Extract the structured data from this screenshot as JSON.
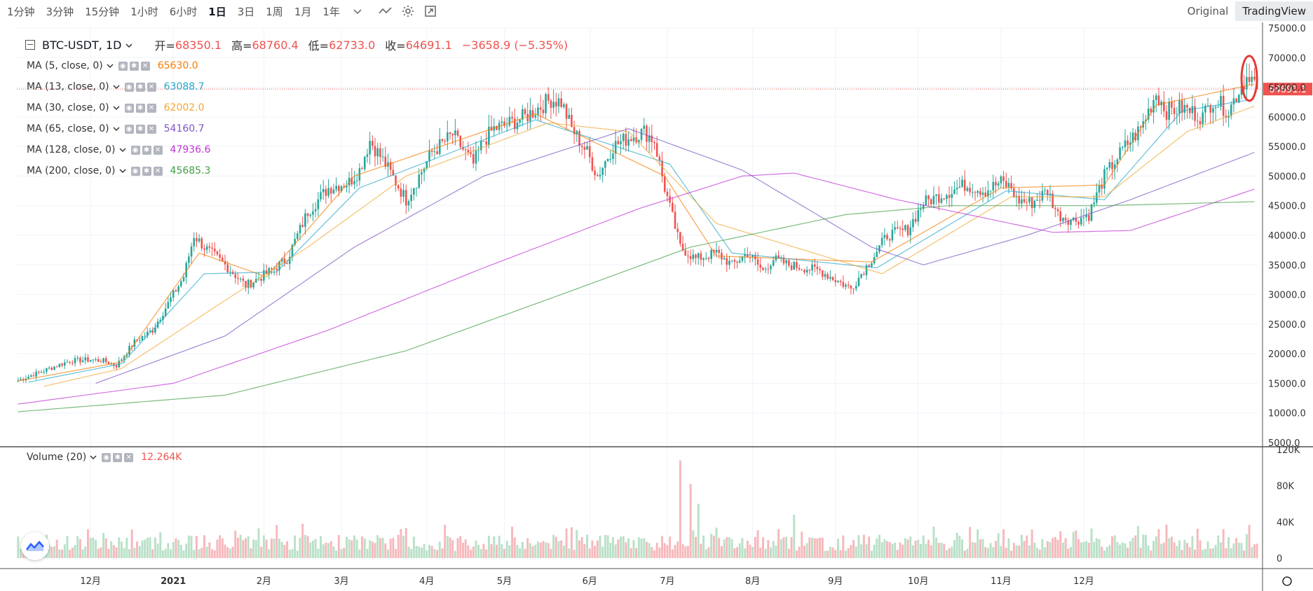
{
  "toolbar": {
    "timeframes": [
      "1分钟",
      "3分钟",
      "15分钟",
      "1小时",
      "6小时",
      "1日",
      "3日",
      "1周",
      "1月",
      "1年"
    ],
    "active_timeframe": "1日",
    "view_buttons": [
      "Original",
      "TradingView"
    ],
    "active_view": "TradingView"
  },
  "header": {
    "symbol": "BTC-USDT, 1D",
    "open_label": "开=",
    "open": "68350.1",
    "high_label": "高=",
    "high": "68760.4",
    "low_label": "低=",
    "low": "62733.0",
    "close_label": "收=",
    "close": "64691.1",
    "change": "−3658.9 (−5.35%)"
  },
  "indicators": [
    {
      "label": "MA (5, close, 0)",
      "value": "65630.0",
      "color": "#f57c00"
    },
    {
      "label": "MA (13, close, 0)",
      "value": "63088.7",
      "color": "#26a6c9"
    },
    {
      "label": "MA (30, close, 0)",
      "value": "62002.0",
      "color": "#f0a832"
    },
    {
      "label": "MA (65, close, 0)",
      "value": "54160.7",
      "color": "#7e57c2"
    },
    {
      "label": "MA (128, close, 0)",
      "value": "47936.6",
      "color": "#c034d6"
    },
    {
      "label": "MA (200, close, 0)",
      "value": "45685.3",
      "color": "#43a047"
    }
  ],
  "volume_legend": {
    "label": "Volume (20)",
    "value": "12.264K",
    "color": "#ef5350"
  },
  "last_price_label": "64691.1",
  "colors": {
    "up": "#26a69a",
    "down": "#ef5350",
    "upVol": "#b9e1c8",
    "downVol": "#f7b8bb"
  },
  "chart_data": {
    "type": "candlestick",
    "symbol": "BTC-USDT",
    "interval": "1D",
    "price_axis": {
      "min": 5000,
      "max": 75000,
      "step": 5000,
      "ticks": [
        "75000.0",
        "70000.0",
        "65000.0",
        "60000.0",
        "55000.0",
        "50000.0",
        "45000.0",
        "40000.0",
        "35000.0",
        "30000.0",
        "25000.0",
        "20000.0",
        "15000.0",
        "10000.0",
        "5000.0"
      ]
    },
    "volume_axis": {
      "min": 0,
      "max": 120000,
      "ticks": [
        "120K",
        "80K",
        "40K",
        "0"
      ]
    },
    "x_axis_labels": [
      "12月",
      "2021",
      "2月",
      "3月",
      "4月",
      "5月",
      "6月",
      "7月",
      "8月",
      "9月",
      "10月",
      "11月",
      "12月"
    ],
    "price_path": [
      [
        0,
        15500
      ],
      [
        12,
        17500
      ],
      [
        20,
        18800
      ],
      [
        28,
        19000
      ],
      [
        33,
        18800
      ],
      [
        38,
        18000
      ],
      [
        45,
        22000
      ],
      [
        52,
        24000
      ],
      [
        58,
        28500
      ],
      [
        64,
        33000
      ],
      [
        68,
        40000
      ],
      [
        72,
        38000
      ],
      [
        80,
        35000
      ],
      [
        88,
        31500
      ],
      [
        96,
        33500
      ],
      [
        104,
        36000
      ],
      [
        112,
        44000
      ],
      [
        120,
        48000
      ],
      [
        128,
        49000
      ],
      [
        132,
        51000
      ],
      [
        136,
        56000
      ],
      [
        142,
        52000
      ],
      [
        150,
        46000
      ],
      [
        160,
        54000
      ],
      [
        168,
        57000
      ],
      [
        176,
        52000
      ],
      [
        180,
        56000
      ],
      [
        184,
        58000
      ],
      [
        188,
        58500
      ],
      [
        196,
        60000
      ],
      [
        206,
        63000
      ],
      [
        210,
        62500
      ],
      [
        214,
        58000
      ],
      [
        220,
        54000
      ],
      [
        224,
        50000
      ],
      [
        230,
        55000
      ],
      [
        236,
        56500
      ],
      [
        242,
        57500
      ],
      [
        246,
        56000
      ],
      [
        250,
        48000
      ],
      [
        256,
        38000
      ],
      [
        262,
        36000
      ],
      [
        270,
        37000
      ],
      [
        276,
        35000
      ],
      [
        282,
        37000
      ],
      [
        288,
        34000
      ],
      [
        292,
        36000
      ],
      [
        298,
        35000
      ],
      [
        304,
        34500
      ],
      [
        310,
        34000
      ],
      [
        316,
        32500
      ],
      [
        322,
        31000
      ],
      [
        330,
        36000
      ],
      [
        336,
        40000
      ],
      [
        344,
        41000
      ],
      [
        350,
        45500
      ],
      [
        358,
        47000
      ],
      [
        366,
        48500
      ],
      [
        374,
        47500
      ],
      [
        380,
        49000
      ],
      [
        384,
        48000
      ],
      [
        386,
        46000
      ],
      [
        392,
        45500
      ],
      [
        398,
        47500
      ],
      [
        402,
        43500
      ],
      [
        408,
        42500
      ],
      [
        414,
        43500
      ],
      [
        420,
        50000
      ],
      [
        428,
        55000
      ],
      [
        434,
        58000
      ],
      [
        440,
        64000
      ],
      [
        444,
        61000
      ],
      [
        450,
        61500
      ],
      [
        458,
        60000
      ],
      [
        462,
        63000
      ],
      [
        468,
        61000
      ],
      [
        472,
        64500
      ],
      [
        476,
        67500
      ],
      [
        479,
        64691
      ]
    ],
    "ma_series": [
      {
        "name": "MA (5, close, 0)",
        "last": 65630.0,
        "points": [
          [
            0,
            15400
          ],
          [
            40,
            18600
          ],
          [
            70,
            37000
          ],
          [
            96,
            33000
          ],
          [
            130,
            50000
          ],
          [
            200,
            60500
          ],
          [
            250,
            50000
          ],
          [
            270,
            36500
          ],
          [
            330,
            35500
          ],
          [
            380,
            48000
          ],
          [
            420,
            48500
          ],
          [
            440,
            62000
          ],
          [
            479,
            65630
          ]
        ]
      },
      {
        "name": "MA (13, close, 0)",
        "last": 63088.7,
        "points": [
          [
            4,
            15200
          ],
          [
            40,
            18300
          ],
          [
            72,
            33500
          ],
          [
            100,
            33800
          ],
          [
            132,
            48000
          ],
          [
            200,
            59500
          ],
          [
            252,
            52000
          ],
          [
            276,
            37000
          ],
          [
            332,
            34500
          ],
          [
            382,
            47500
          ],
          [
            420,
            46000
          ],
          [
            450,
            61000
          ],
          [
            479,
            63089
          ]
        ]
      },
      {
        "name": "MA (30, close, 0)",
        "last": 62002.0,
        "points": [
          [
            10,
            14500
          ],
          [
            40,
            17500
          ],
          [
            80,
            29000
          ],
          [
            112,
            38000
          ],
          [
            150,
            50000
          ],
          [
            205,
            59000
          ],
          [
            236,
            57500
          ],
          [
            270,
            42000
          ],
          [
            334,
            33500
          ],
          [
            384,
            46500
          ],
          [
            420,
            46500
          ],
          [
            452,
            57500
          ],
          [
            479,
            62002
          ]
        ]
      },
      {
        "name": "MA (65, close, 0)",
        "last": 54160.7,
        "points": [
          [
            30,
            15000
          ],
          [
            80,
            23000
          ],
          [
            130,
            38000
          ],
          [
            180,
            50000
          ],
          [
            236,
            58000
          ],
          [
            280,
            51000
          ],
          [
            330,
            38000
          ],
          [
            350,
            35000
          ],
          [
            390,
            40000
          ],
          [
            430,
            46000
          ],
          [
            479,
            54161
          ]
        ]
      },
      {
        "name": "MA (128, close, 0)",
        "last": 47936.6,
        "points": [
          [
            0,
            11500
          ],
          [
            60,
            15000
          ],
          [
            120,
            24000
          ],
          [
            180,
            34500
          ],
          [
            240,
            44500
          ],
          [
            280,
            50000
          ],
          [
            300,
            50500
          ],
          [
            340,
            46000
          ],
          [
            400,
            40500
          ],
          [
            430,
            40800
          ],
          [
            479,
            47937
          ]
        ]
      },
      {
        "name": "MA (200, close, 0)",
        "last": 45685.3,
        "points": [
          [
            0,
            10200
          ],
          [
            80,
            13000
          ],
          [
            150,
            20500
          ],
          [
            210,
            30000
          ],
          [
            260,
            38000
          ],
          [
            320,
            43500
          ],
          [
            360,
            45000
          ],
          [
            420,
            45000
          ],
          [
            479,
            45685
          ]
        ]
      }
    ],
    "volume_spikes": [
      [
        256,
        108000
      ],
      [
        260,
        82000
      ],
      [
        263,
        60000
      ],
      [
        300,
        48000
      ],
      [
        214,
        34000
      ],
      [
        148,
        32000
      ],
      [
        110,
        38000
      ]
    ]
  }
}
